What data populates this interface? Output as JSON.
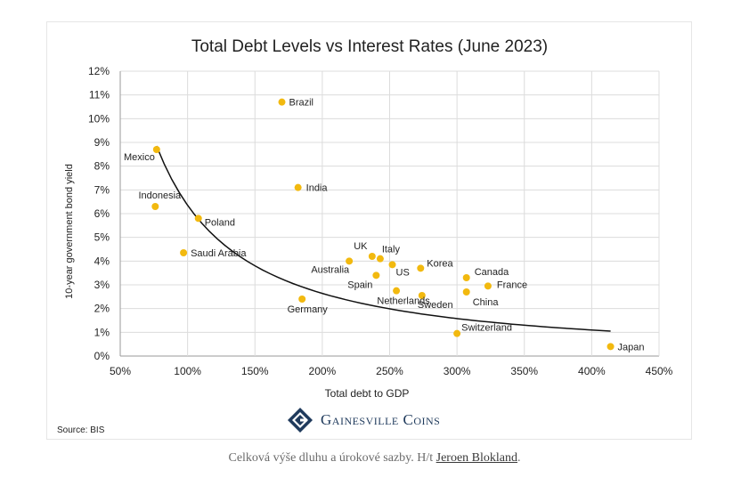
{
  "chart_data": {
    "type": "scatter",
    "title": "Total Debt Levels vs Interest Rates (June 2023)",
    "xlabel": "Total debt to GDP",
    "ylabel": "10-year government bond yield",
    "xlim": [
      50,
      450
    ],
    "ylim": [
      0,
      12
    ],
    "x_ticks": [
      "50%",
      "100%",
      "150%",
      "200%",
      "250%",
      "300%",
      "350%",
      "400%",
      "450%"
    ],
    "y_ticks": [
      "0%",
      "1%",
      "2%",
      "3%",
      "4%",
      "5%",
      "6%",
      "7%",
      "8%",
      "9%",
      "10%",
      "11%",
      "12%"
    ],
    "grid": true,
    "point_color": "#f2b90f",
    "points": [
      {
        "label": "Brazil",
        "x": 170,
        "y": 10.7
      },
      {
        "label": "Mexico",
        "x": 77,
        "y": 8.7
      },
      {
        "label": "India",
        "x": 182,
        "y": 7.1
      },
      {
        "label": "Indonesia",
        "x": 76,
        "y": 6.3
      },
      {
        "label": "Poland",
        "x": 108,
        "y": 5.8
      },
      {
        "label": "Saudi Arabia",
        "x": 97,
        "y": 4.35
      },
      {
        "label": "UK",
        "x": 237,
        "y": 4.2
      },
      {
        "label": "Italy",
        "x": 243,
        "y": 4.1
      },
      {
        "label": "Australia",
        "x": 220,
        "y": 4.0
      },
      {
        "label": "US",
        "x": 252,
        "y": 3.85
      },
      {
        "label": "Korea",
        "x": 273,
        "y": 3.7
      },
      {
        "label": "Spain",
        "x": 240,
        "y": 3.4
      },
      {
        "label": "Canada",
        "x": 307,
        "y": 3.3
      },
      {
        "label": "France",
        "x": 323,
        "y": 2.95
      },
      {
        "label": "Netherlands",
        "x": 255,
        "y": 2.75
      },
      {
        "label": "China",
        "x": 307,
        "y": 2.7
      },
      {
        "label": "Sweden",
        "x": 274,
        "y": 2.55
      },
      {
        "label": "Germany",
        "x": 185,
        "y": 2.4
      },
      {
        "label": "Switzerland",
        "x": 300,
        "y": 0.95
      },
      {
        "label": "Japan",
        "x": 414,
        "y": 0.4
      }
    ],
    "trendline": {
      "type": "power",
      "x_range": [
        77,
        414
      ],
      "y_start": 8.85,
      "y_end": 1.05
    },
    "source": "Source: BIS"
  },
  "brand": {
    "name": "Gainesville Coins"
  },
  "caption": {
    "text": "Celková výše dluhu a úrokové sazby. H/t ",
    "link": "Jeroen Blokland",
    "end": "."
  }
}
